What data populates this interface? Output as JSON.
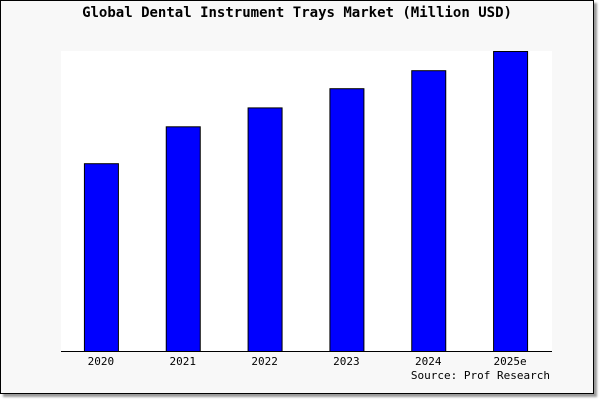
{
  "chart_data": {
    "type": "bar",
    "title": "Global Dental Instrument Trays Market (Million USD)",
    "categories": [
      "2020",
      "2021",
      "2022",
      "2023",
      "2024",
      "2025e"
    ],
    "values": [
      62.6,
      74.9,
      81.2,
      87.6,
      93.6,
      100
    ],
    "ylim": [
      0,
      100
    ],
    "xlabel": "",
    "ylabel": "",
    "grid": false,
    "bar_color": "#0000ff",
    "source": "Source: Prof Research"
  }
}
